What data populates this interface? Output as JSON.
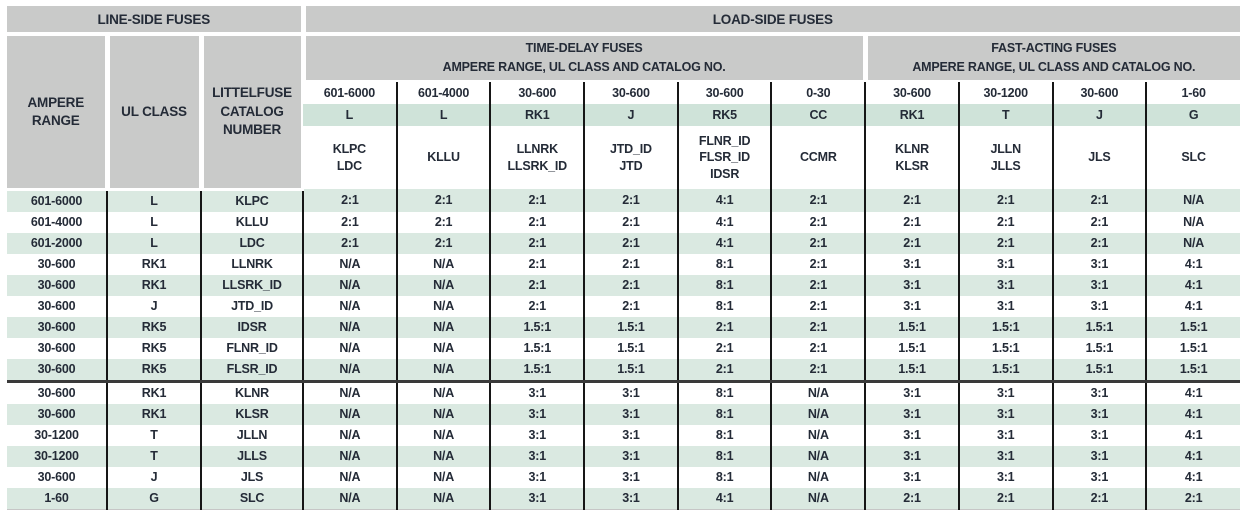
{
  "banners": {
    "line_side": "LINE-SIDE FUSES",
    "load_side": "LOAD-SIDE FUSES"
  },
  "line_side_headers": {
    "ampere_range": "AMPERE\nRANGE",
    "ul_class": "UL CLASS",
    "catalog_number": "LITTELFUSE\nCATALOG\nNUMBER"
  },
  "group_headers": {
    "time_delay": {
      "title": "TIME-DELAY FUSES",
      "subtitle": "AMPERE RANGE, UL CLASS AND CATALOG NO."
    },
    "fast_acting": {
      "title": "FAST-ACTING FUSES",
      "subtitle": "AMPERE RANGE, UL CLASS AND CATALOG NO."
    }
  },
  "load_columns": [
    {
      "range": "601-6000",
      "class": "L",
      "catalog": "KLPC\nLDC"
    },
    {
      "range": "601-4000",
      "class": "L",
      "catalog": "KLLU"
    },
    {
      "range": "30-600",
      "class": "RK1",
      "catalog": "LLNRK\nLLSRK_ID"
    },
    {
      "range": "30-600",
      "class": "J",
      "catalog": "JTD_ID\nJTD"
    },
    {
      "range": "30-600",
      "class": "RK5",
      "catalog": "FLNR_ID\nFLSR_ID\nIDSR"
    },
    {
      "range": "0-30",
      "class": "CC",
      "catalog": "CCMR"
    },
    {
      "range": "30-600",
      "class": "RK1",
      "catalog": "KLNR\nKLSR"
    },
    {
      "range": "30-1200",
      "class": "T",
      "catalog": "JLLN\nJLLS"
    },
    {
      "range": "30-600",
      "class": "J",
      "catalog": "JLS"
    },
    {
      "range": "1-60",
      "class": "G",
      "catalog": "SLC"
    }
  ],
  "rows": [
    {
      "range": "601-6000",
      "class": "L",
      "catalog": "KLPC",
      "ratios": [
        "2:1",
        "2:1",
        "2:1",
        "2:1",
        "4:1",
        "2:1",
        "2:1",
        "2:1",
        "2:1",
        "N/A"
      ]
    },
    {
      "range": "601-4000",
      "class": "L",
      "catalog": "KLLU",
      "ratios": [
        "2:1",
        "2:1",
        "2:1",
        "2:1",
        "4:1",
        "2:1",
        "2:1",
        "2:1",
        "2:1",
        "N/A"
      ]
    },
    {
      "range": "601-2000",
      "class": "L",
      "catalog": "LDC",
      "ratios": [
        "2:1",
        "2:1",
        "2:1",
        "2:1",
        "4:1",
        "2:1",
        "2:1",
        "2:1",
        "2:1",
        "N/A"
      ]
    },
    {
      "range": "30-600",
      "class": "RK1",
      "catalog": "LLNRK",
      "ratios": [
        "N/A",
        "N/A",
        "2:1",
        "2:1",
        "8:1",
        "2:1",
        "3:1",
        "3:1",
        "3:1",
        "4:1"
      ]
    },
    {
      "range": "30-600",
      "class": "RK1",
      "catalog": "LLSRK_ID",
      "ratios": [
        "N/A",
        "N/A",
        "2:1",
        "2:1",
        "8:1",
        "2:1",
        "3:1",
        "3:1",
        "3:1",
        "4:1"
      ]
    },
    {
      "range": "30-600",
      "class": "J",
      "catalog": "JTD_ID",
      "ratios": [
        "N/A",
        "N/A",
        "2:1",
        "2:1",
        "8:1",
        "2:1",
        "3:1",
        "3:1",
        "3:1",
        "4:1"
      ]
    },
    {
      "range": "30-600",
      "class": "RK5",
      "catalog": "IDSR",
      "ratios": [
        "N/A",
        "N/A",
        "1.5:1",
        "1.5:1",
        "2:1",
        "2:1",
        "1.5:1",
        "1.5:1",
        "1.5:1",
        "1.5:1"
      ]
    },
    {
      "range": "30-600",
      "class": "RK5",
      "catalog": "FLNR_ID",
      "ratios": [
        "N/A",
        "N/A",
        "1.5:1",
        "1.5:1",
        "2:1",
        "2:1",
        "1.5:1",
        "1.5:1",
        "1.5:1",
        "1.5:1"
      ]
    },
    {
      "range": "30-600",
      "class": "RK5",
      "catalog": "FLSR_ID",
      "ratios": [
        "N/A",
        "N/A",
        "1.5:1",
        "1.5:1",
        "2:1",
        "2:1",
        "1.5:1",
        "1.5:1",
        "1.5:1",
        "1.5:1"
      ]
    },
    {
      "range": "30-600",
      "class": "RK1",
      "catalog": "KLNR",
      "ratios": [
        "N/A",
        "N/A",
        "3:1",
        "3:1",
        "8:1",
        "N/A",
        "3:1",
        "3:1",
        "3:1",
        "4:1"
      ]
    },
    {
      "range": "30-600",
      "class": "RK1",
      "catalog": "KLSR",
      "ratios": [
        "N/A",
        "N/A",
        "3:1",
        "3:1",
        "8:1",
        "N/A",
        "3:1",
        "3:1",
        "3:1",
        "4:1"
      ]
    },
    {
      "range": "30-1200",
      "class": "T",
      "catalog": "JLLN",
      "ratios": [
        "N/A",
        "N/A",
        "3:1",
        "3:1",
        "8:1",
        "N/A",
        "3:1",
        "3:1",
        "3:1",
        "4:1"
      ]
    },
    {
      "range": "30-1200",
      "class": "T",
      "catalog": "JLLS",
      "ratios": [
        "N/A",
        "N/A",
        "3:1",
        "3:1",
        "8:1",
        "N/A",
        "3:1",
        "3:1",
        "3:1",
        "4:1"
      ]
    },
    {
      "range": "30-600",
      "class": "J",
      "catalog": "JLS",
      "ratios": [
        "N/A",
        "N/A",
        "3:1",
        "3:1",
        "8:1",
        "N/A",
        "3:1",
        "3:1",
        "3:1",
        "4:1"
      ]
    },
    {
      "range": "1-60",
      "class": "G",
      "catalog": "SLC",
      "ratios": [
        "N/A",
        "N/A",
        "3:1",
        "3:1",
        "4:1",
        "N/A",
        "2:1",
        "2:1",
        "2:1",
        "2:1"
      ]
    }
  ],
  "colors": {
    "header_gray": "#c9cac9",
    "class_row_green": "#cfe3d9",
    "row_stripe_green": "#dae9e1",
    "grid_line_black": "#161616",
    "section_separator_dark": "#3a3a3a",
    "text_dark": "#242b37"
  }
}
